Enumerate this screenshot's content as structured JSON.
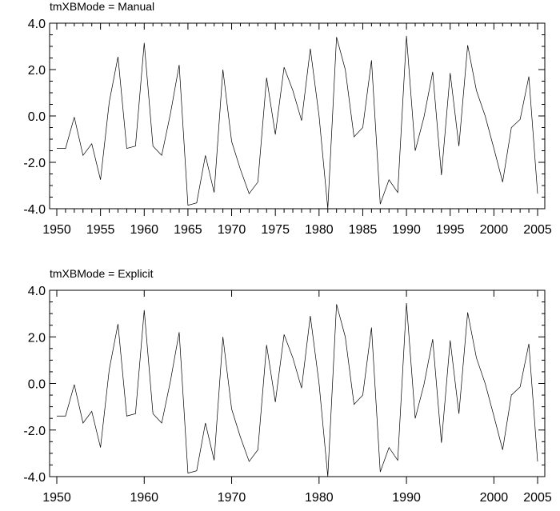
{
  "chart_data": [
    {
      "type": "line",
      "title": "tmXBMode = Manual",
      "xlim": [
        1950,
        2005
      ],
      "ylim": [
        -4.0,
        4.0
      ],
      "y_ticks": [
        4.0,
        2.0,
        0.0,
        -2.0,
        -4.0
      ],
      "y_tick_labels": [
        "4.0",
        "2.0",
        "0.0",
        "-2.0",
        "-4.0"
      ],
      "x_ticks": [
        1950,
        1955,
        1960,
        1965,
        1970,
        1975,
        1980,
        1985,
        1990,
        1995,
        2000,
        2005
      ],
      "x_tick_labels": [
        "1950",
        "1955",
        "1960",
        "1965",
        "1970",
        "1975",
        "1980",
        "1985",
        "1990",
        "1995",
        "2000",
        "2005"
      ],
      "x_minor_ticks": [
        1951,
        1952,
        1953,
        1954,
        1956,
        1957,
        1958,
        1959,
        1961,
        1962,
        1963,
        1964,
        1966,
        1967,
        1968,
        1969,
        1971,
        1972,
        1973,
        1974,
        1976,
        1977,
        1978,
        1979,
        1981,
        1982,
        1983,
        1984,
        1986,
        1987,
        1988,
        1989,
        1991,
        1992,
        1993,
        1994,
        1996,
        1997,
        1998,
        1999,
        2001,
        2002,
        2003,
        2004
      ],
      "series": [
        {
          "x": [
            1950,
            1951,
            1952,
            1953,
            1954,
            1955,
            1956,
            1957,
            1958,
            1959,
            1960,
            1961,
            1962,
            1963,
            1964,
            1965,
            1966,
            1967,
            1968,
            1969,
            1970,
            1971,
            1972,
            1973,
            1974,
            1975,
            1976,
            1977,
            1978,
            1979,
            1980,
            1981,
            1982,
            1983,
            1984,
            1985,
            1986,
            1987,
            1988,
            1989,
            1990,
            1991,
            1992,
            1993,
            1994,
            1995,
            1996,
            1997,
            1998,
            1999,
            2000,
            2001,
            2002,
            2003,
            2004,
            2005
          ],
          "y": [
            -1.4,
            -1.4,
            -0.05,
            -1.7,
            -1.2,
            -2.75,
            0.6,
            2.55,
            -1.4,
            -1.3,
            3.15,
            -1.3,
            -1.7,
            0.1,
            2.2,
            -3.85,
            -3.75,
            -1.7,
            -3.3,
            2.0,
            -1.1,
            -2.3,
            -3.35,
            -2.85,
            1.65,
            -0.8,
            2.1,
            1.1,
            -0.2,
            2.9,
            0.0,
            -4.0,
            3.4,
            2.0,
            -0.9,
            -0.5,
            2.4,
            -3.8,
            -2.75,
            -3.3,
            3.45,
            -1.5,
            -0.05,
            1.9,
            -2.55,
            1.85,
            -1.3,
            3.05,
            1.1,
            0.0,
            -1.4,
            -2.85,
            -0.5,
            -0.15,
            1.7,
            -3.35
          ]
        }
      ]
    },
    {
      "type": "line",
      "title": "tmXBMode = Explicit",
      "xlim": [
        1950,
        2005
      ],
      "ylim": [
        -4.0,
        4.0
      ],
      "y_ticks": [
        4.0,
        2.0,
        0.0,
        -2.0,
        -4.0
      ],
      "y_tick_labels": [
        "4.0",
        "2.0",
        "0.0",
        "-2.0",
        "-4.0"
      ],
      "x_ticks": [
        1950,
        1960,
        1970,
        1980,
        1990,
        2000,
        2005
      ],
      "x_tick_labels": [
        "1950",
        "1960",
        "1970",
        "1980",
        "1990",
        "2000",
        "2005"
      ],
      "x_minor_ticks": [],
      "series": [
        {
          "x": [
            1950,
            1951,
            1952,
            1953,
            1954,
            1955,
            1956,
            1957,
            1958,
            1959,
            1960,
            1961,
            1962,
            1963,
            1964,
            1965,
            1966,
            1967,
            1968,
            1969,
            1970,
            1971,
            1972,
            1973,
            1974,
            1975,
            1976,
            1977,
            1978,
            1979,
            1980,
            1981,
            1982,
            1983,
            1984,
            1985,
            1986,
            1987,
            1988,
            1989,
            1990,
            1991,
            1992,
            1993,
            1994,
            1995,
            1996,
            1997,
            1998,
            1999,
            2000,
            2001,
            2002,
            2003,
            2004,
            2005
          ],
          "y": [
            -1.4,
            -1.4,
            -0.05,
            -1.7,
            -1.2,
            -2.75,
            0.6,
            2.55,
            -1.4,
            -1.3,
            3.15,
            -1.3,
            -1.7,
            0.1,
            2.2,
            -3.85,
            -3.75,
            -1.7,
            -3.3,
            2.0,
            -1.1,
            -2.3,
            -3.35,
            -2.85,
            1.65,
            -0.8,
            2.1,
            1.1,
            -0.2,
            2.9,
            0.0,
            -4.0,
            3.4,
            2.0,
            -0.9,
            -0.5,
            2.4,
            -3.8,
            -2.75,
            -3.3,
            3.45,
            -1.5,
            -0.05,
            1.9,
            -2.55,
            1.85,
            -1.3,
            3.05,
            1.1,
            0.0,
            -1.4,
            -2.85,
            -0.5,
            -0.15,
            1.7,
            -3.35
          ]
        }
      ]
    }
  ]
}
